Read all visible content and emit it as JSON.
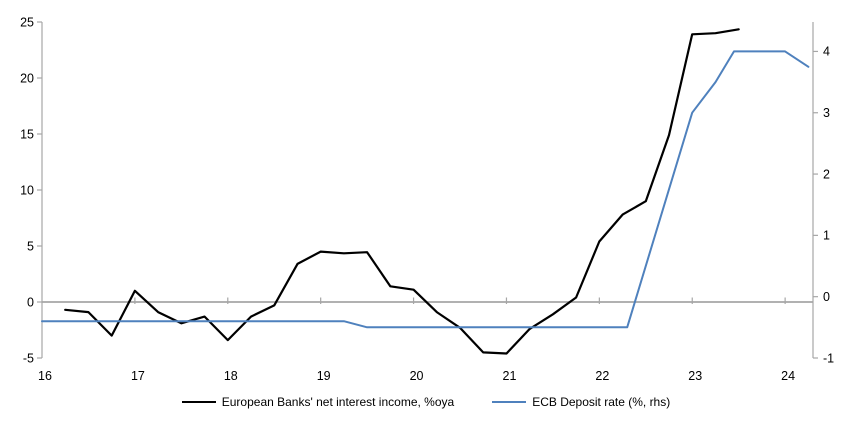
{
  "chart_data": {
    "type": "line",
    "title": "",
    "x_axis": {
      "min": 16,
      "max": 24.3,
      "ticks": [
        16,
        17,
        18,
        19,
        20,
        21,
        22,
        23,
        24
      ],
      "tick_labels": [
        "16",
        "17",
        "18",
        "19",
        "20",
        "21",
        "22",
        "23",
        "24"
      ]
    },
    "left_axis": {
      "min": -5,
      "max": 25,
      "ticks": [
        -5,
        0,
        5,
        10,
        15,
        20,
        25
      ],
      "tick_labels": [
        "-5",
        "0",
        "5",
        "10",
        "15",
        "20",
        "25"
      ]
    },
    "right_axis": {
      "min": -1,
      "max": 4.48,
      "ticks": [
        -1,
        0,
        1,
        2,
        3,
        4
      ],
      "tick_labels": [
        "-1",
        "0",
        "1",
        "2",
        "3",
        "4"
      ]
    },
    "grid": "zero-line-only",
    "legend_position": "bottom",
    "series": [
      {
        "name": "European Banks' net interest income, %oya",
        "axis": "left",
        "color": "#000000",
        "width": 2.2,
        "points": [
          [
            16.25,
            -0.7
          ],
          [
            16.5,
            -0.9
          ],
          [
            16.75,
            -3.0
          ],
          [
            17.0,
            1.0
          ],
          [
            17.25,
            -0.9
          ],
          [
            17.5,
            -1.9
          ],
          [
            17.75,
            -1.3
          ],
          [
            18.0,
            -3.4
          ],
          [
            18.25,
            -1.3
          ],
          [
            18.5,
            -0.3
          ],
          [
            18.75,
            3.4
          ],
          [
            19.0,
            4.5
          ],
          [
            19.25,
            4.35
          ],
          [
            19.5,
            4.45
          ],
          [
            19.75,
            1.4
          ],
          [
            20.0,
            1.1
          ],
          [
            20.25,
            -0.9
          ],
          [
            20.5,
            -2.3
          ],
          [
            20.75,
            -4.5
          ],
          [
            21.0,
            -4.6
          ],
          [
            21.25,
            -2.4
          ],
          [
            21.5,
            -1.1
          ],
          [
            21.75,
            0.4
          ],
          [
            22.0,
            5.4
          ],
          [
            22.25,
            7.8
          ],
          [
            22.5,
            9.0
          ],
          [
            22.75,
            14.9
          ],
          [
            23.0,
            23.9
          ],
          [
            23.25,
            24.0
          ],
          [
            23.5,
            24.35
          ]
        ]
      },
      {
        "name": "ECB Deposit rate (%, rhs)",
        "axis": "right",
        "color": "#4F81BD",
        "width": 2,
        "points": [
          [
            16.0,
            -0.4
          ],
          [
            19.25,
            -0.4
          ],
          [
            19.5,
            -0.5
          ],
          [
            22.3,
            -0.5
          ],
          [
            23.0,
            3.0
          ],
          [
            23.25,
            3.5
          ],
          [
            23.45,
            4.0
          ],
          [
            24.0,
            4.0
          ],
          [
            24.25,
            3.75
          ]
        ]
      }
    ]
  },
  "colors": {
    "axis": "#A6A6A6",
    "text": "#000000",
    "background": "#FFFFFF"
  }
}
